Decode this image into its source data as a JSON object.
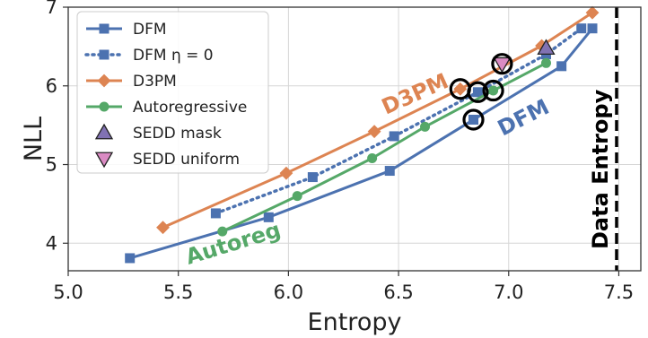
{
  "chart_data": {
    "type": "line",
    "xlabel": "Entropy",
    "ylabel": "NLL",
    "xlim": [
      5.0,
      7.6
    ],
    "ylim": [
      3.65,
      7.0
    ],
    "xticks": [
      5.0,
      5.5,
      6.0,
      6.5,
      7.0,
      7.5
    ],
    "xtick_labels": [
      "5.0",
      "5.5",
      "6.0",
      "6.5",
      "7.0",
      "7.5"
    ],
    "yticks": [
      4,
      5,
      6,
      7
    ],
    "ytick_labels": [
      "4",
      "5",
      "6",
      "7"
    ],
    "grid": true,
    "legend_placement": "top-left",
    "series": [
      {
        "name": "DFM",
        "color": "#4c72b0",
        "style": "solid",
        "marker": "square",
        "x": [
          5.28,
          5.91,
          6.46,
          6.84,
          7.24,
          7.38
        ],
        "y": [
          3.81,
          4.33,
          4.92,
          5.57,
          6.25,
          6.73
        ]
      },
      {
        "name": "DFM η = 0",
        "color": "#4c72b0",
        "style": "dotted",
        "marker": "square",
        "x": [
          5.67,
          6.11,
          6.48,
          6.86,
          7.17,
          7.33
        ],
        "y": [
          4.38,
          4.84,
          5.36,
          5.92,
          6.4,
          6.73
        ]
      },
      {
        "name": "D3PM",
        "color": "#dd8452",
        "style": "solid",
        "marker": "diamond",
        "x": [
          5.43,
          5.99,
          6.39,
          6.78,
          7.15,
          7.38
        ],
        "y": [
          4.2,
          4.89,
          5.42,
          5.96,
          6.51,
          6.93
        ]
      },
      {
        "name": "Autoregressive",
        "color": "#55a868",
        "style": "solid",
        "marker": "circle",
        "x": [
          5.7,
          6.04,
          6.38,
          6.62,
          6.93,
          7.17
        ],
        "y": [
          4.15,
          4.6,
          5.08,
          5.48,
          5.94,
          6.29
        ]
      },
      {
        "name": "SEDD mask",
        "color": "#8172b3",
        "style": "none",
        "marker": "triangle-up",
        "x": [
          7.17
        ],
        "y": [
          6.48
        ]
      },
      {
        "name": "SEDD uniform",
        "color": "#da8bc3",
        "style": "none",
        "marker": "triangle-down",
        "x": [
          6.97
        ],
        "y": [
          6.28
        ]
      }
    ],
    "highlight_circles": [
      {
        "x": 6.78,
        "y": 5.96
      },
      {
        "x": 6.86,
        "y": 5.92
      },
      {
        "x": 6.93,
        "y": 5.94
      },
      {
        "x": 6.84,
        "y": 5.57
      },
      {
        "x": 6.97,
        "y": 6.28
      }
    ],
    "reference_line": {
      "x": 7.49,
      "label": "Data Entropy",
      "color": "#000000",
      "style": "dashed"
    },
    "annotations": [
      {
        "text": "D3PM",
        "color": "#dd8452"
      },
      {
        "text": "DFM",
        "color": "#4c72b0"
      },
      {
        "text": "Autoreg",
        "color": "#55a868"
      }
    ]
  }
}
